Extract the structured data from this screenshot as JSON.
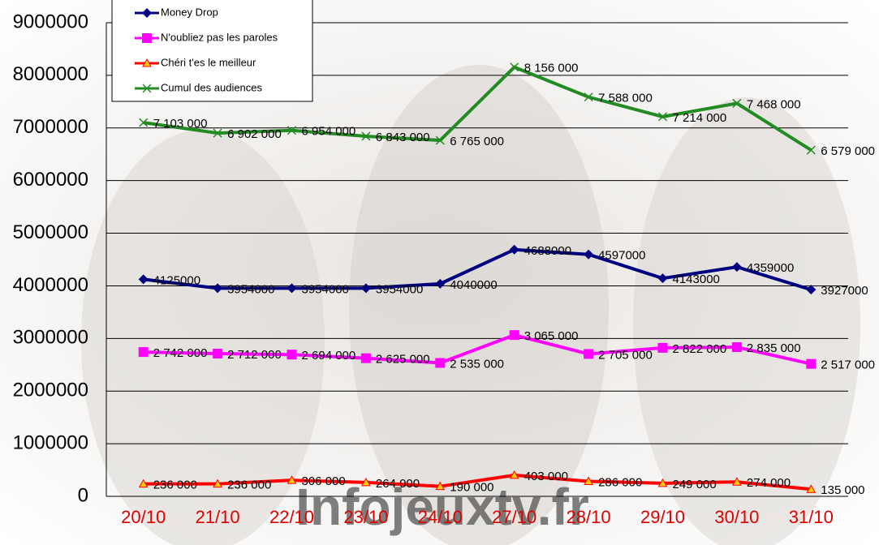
{
  "chart_data": {
    "type": "line",
    "watermark": "Infojeuxtv.fr",
    "categories": [
      "20/10",
      "21/10",
      "22/10",
      "23/10",
      "24/10",
      "27/10",
      "28/10",
      "29/10",
      "30/10",
      "31/10"
    ],
    "series": [
      {
        "name": "Money Drop",
        "color": "#000080",
        "marker": "diamond",
        "values": [
          4125000,
          3954000,
          3954000,
          3954000,
          4040000,
          4688000,
          4597000,
          4143000,
          4359000,
          3927000
        ]
      },
      {
        "name": "N'oubliez pas les paroles",
        "color": "#ff00ff",
        "marker": "square",
        "values": [
          2742000,
          2712000,
          2694000,
          2625000,
          2535000,
          3065000,
          2705000,
          2822000,
          2835000,
          2517000
        ],
        "value_labels": [
          "2 742 000",
          "2 712 000",
          "2 694 000",
          "2 625 000",
          "2 535 000",
          "3 065 000",
          "2 705 000",
          "2 822 000",
          "2 835 000",
          "2 517 000"
        ]
      },
      {
        "name": "Chéri t'es le meilleur",
        "color": "#ff0000",
        "marker": "triangle",
        "values": [
          236000,
          236000,
          306000,
          264000,
          190000,
          403000,
          286000,
          249000,
          274000,
          135000
        ],
        "value_labels": [
          "236 000",
          "236 000",
          "306 000",
          "264 000",
          "190 000",
          "403 000",
          "286 000",
          "249 000",
          "274 000",
          "135 000"
        ]
      },
      {
        "name": "Cumul des audiences",
        "color": "#228b22",
        "marker": "x",
        "values": [
          7103000,
          6902000,
          6954000,
          6843000,
          6765000,
          8156000,
          7588000,
          7214000,
          7468000,
          6579000
        ],
        "value_labels": [
          "7 103 000",
          "6 902 000",
          "6 954 000",
          "6 843 000",
          "6 765 000",
          "8 156 000",
          "7 588 000",
          "7 214 000",
          "7 468 000",
          "6 579 000"
        ]
      }
    ],
    "ylim": [
      0,
      9000000
    ],
    "yticks": [
      0,
      1000000,
      2000000,
      3000000,
      4000000,
      5000000,
      6000000,
      7000000,
      8000000,
      9000000
    ],
    "grid": true,
    "legend": "top-left"
  }
}
